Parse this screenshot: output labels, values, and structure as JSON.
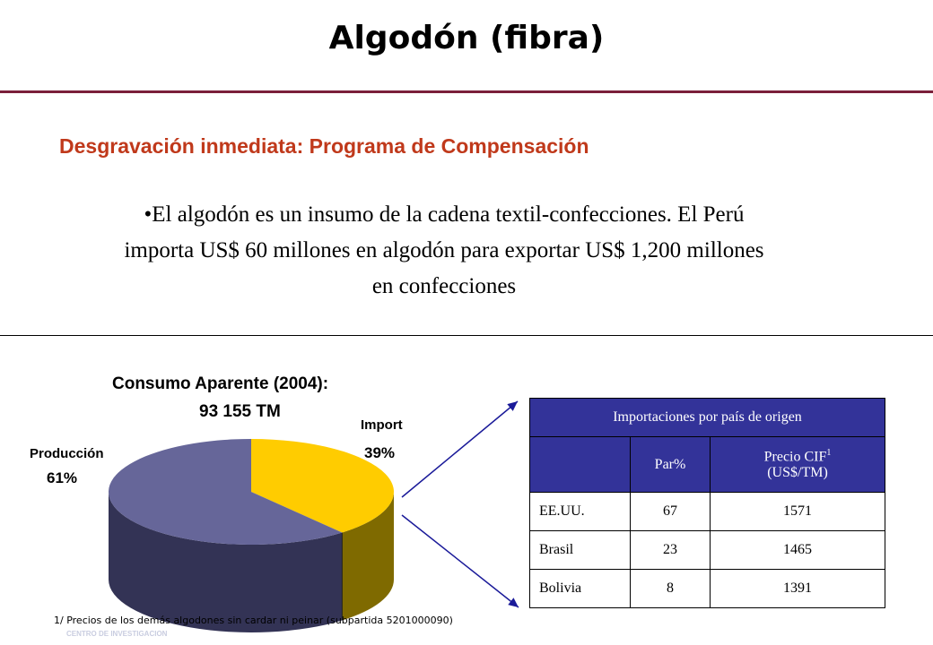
{
  "header": {
    "title": "Algodón (fibra)",
    "subtitle": "Desgravación inmediata: Programa de Compensación",
    "body_line1": "•El algodón es un insumo de la cadena textil-confecciones. El Perú",
    "body_line2": "importa US$ 60 millones en algodón para exportar US$ 1,200 millones",
    "body_line3": "en confecciones"
  },
  "chart_data": {
    "type": "pie",
    "title": "Consumo Aparente (2004):",
    "subtitle": "93 155 TM",
    "slices": [
      {
        "label": "Import",
        "value": 39,
        "value_label": "39%",
        "color": "#ffcc00",
        "side_color": "#7f6a00"
      },
      {
        "label": "Producción",
        "value": 61,
        "value_label": "61%",
        "color": "#666699",
        "side_color": "#333355"
      }
    ]
  },
  "table": {
    "header_title": "Importaciones por país de origen",
    "col_par": "Par%",
    "col_precio_line1": "Precio CIF",
    "col_precio_sup": "1",
    "col_precio_line2": "(US$/TM)",
    "rows": [
      {
        "country": "EE.UU.",
        "par": "67",
        "precio": "1571"
      },
      {
        "country": "Brasil",
        "par": "23",
        "precio": "1465"
      },
      {
        "country": "Bolivia",
        "par": "8",
        "precio": "1391"
      }
    ]
  },
  "footnote": "1/ Precios de los demás algodones sin cardar ni peinar (subpartida 5201000090)",
  "watermark": "CENTRO DE INVESTIGACION",
  "colors": {
    "accent_rule": "#7a1f3a",
    "subtitle": "#c0391b",
    "table_header": "#333399",
    "arrow": "#1a1a99"
  }
}
